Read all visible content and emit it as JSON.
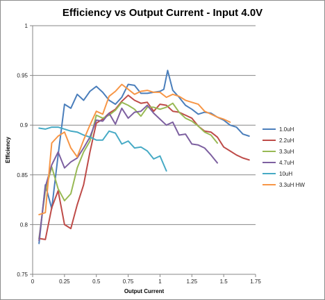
{
  "chart_data": {
    "type": "line",
    "title": "Efficiency vs Output Current - Input 4.0V",
    "xlabel": "Output Current",
    "ylabel": "Efficiency",
    "xlim": [
      0,
      1.75
    ],
    "ylim": [
      0.75,
      1
    ],
    "xticks": [
      "0",
      "0.25",
      "0.5",
      "0.75",
      "1",
      "1.25",
      "1.5",
      "1.75"
    ],
    "yticks": [
      "0.75",
      "0.8",
      "0.85",
      "0.9",
      "0.95",
      "1"
    ],
    "grid": "horizontal",
    "legend_position": "right",
    "series": [
      {
        "name": "1.0uH",
        "color": "#4a7ebb",
        "points": [
          [
            0.05,
            0.781
          ],
          [
            0.1,
            0.84
          ],
          [
            0.15,
            0.816
          ],
          [
            0.2,
            0.87
          ],
          [
            0.25,
            0.921
          ],
          [
            0.3,
            0.917
          ],
          [
            0.35,
            0.931
          ],
          [
            0.4,
            0.925
          ],
          [
            0.45,
            0.934
          ],
          [
            0.5,
            0.939
          ],
          [
            0.55,
            0.933
          ],
          [
            0.6,
            0.925
          ],
          [
            0.65,
            0.921
          ],
          [
            0.7,
            0.928
          ],
          [
            0.75,
            0.941
          ],
          [
            0.8,
            0.94
          ],
          [
            0.85,
            0.932
          ],
          [
            0.9,
            0.932
          ],
          [
            0.95,
            0.933
          ],
          [
            1.0,
            0.934
          ],
          [
            1.03,
            0.936
          ],
          [
            1.06,
            0.955
          ],
          [
            1.1,
            0.935
          ],
          [
            1.15,
            0.928
          ],
          [
            1.2,
            0.92
          ],
          [
            1.25,
            0.916
          ],
          [
            1.3,
            0.911
          ],
          [
            1.35,
            0.913
          ],
          [
            1.4,
            0.912
          ],
          [
            1.45,
            0.908
          ],
          [
            1.5,
            0.905
          ],
          [
            1.55,
            0.9
          ],
          [
            1.6,
            0.898
          ],
          [
            1.65,
            0.891
          ],
          [
            1.7,
            0.889
          ]
        ]
      },
      {
        "name": "2.2uH",
        "color": "#be4b48",
        "points": [
          [
            0.05,
            0.786
          ],
          [
            0.1,
            0.785
          ],
          [
            0.15,
            0.817
          ],
          [
            0.2,
            0.834
          ],
          [
            0.25,
            0.8
          ],
          [
            0.3,
            0.796
          ],
          [
            0.35,
            0.82
          ],
          [
            0.4,
            0.84
          ],
          [
            0.45,
            0.873
          ],
          [
            0.5,
            0.902
          ],
          [
            0.55,
            0.906
          ],
          [
            0.6,
            0.912
          ],
          [
            0.65,
            0.916
          ],
          [
            0.7,
            0.924
          ],
          [
            0.75,
            0.93
          ],
          [
            0.8,
            0.925
          ],
          [
            0.85,
            0.922
          ],
          [
            0.9,
            0.923
          ],
          [
            0.95,
            0.914
          ],
          [
            1.0,
            0.921
          ],
          [
            1.05,
            0.92
          ],
          [
            1.1,
            0.914
          ],
          [
            1.15,
            0.913
          ],
          [
            1.2,
            0.91
          ],
          [
            1.25,
            0.907
          ],
          [
            1.3,
            0.899
          ],
          [
            1.35,
            0.894
          ],
          [
            1.4,
            0.893
          ],
          [
            1.45,
            0.888
          ],
          [
            1.5,
            0.878
          ],
          [
            1.55,
            0.874
          ],
          [
            1.6,
            0.87
          ],
          [
            1.65,
            0.867
          ],
          [
            1.7,
            0.865
          ]
        ]
      },
      {
        "name": "3.3uH",
        "color": "#98b954",
        "points": [
          [
            0.05,
            0.786
          ],
          [
            0.1,
            0.834
          ],
          [
            0.15,
            0.858
          ],
          [
            0.2,
            0.836
          ],
          [
            0.25,
            0.824
          ],
          [
            0.3,
            0.831
          ],
          [
            0.35,
            0.857
          ],
          [
            0.4,
            0.873
          ],
          [
            0.45,
            0.884
          ],
          [
            0.5,
            0.91
          ],
          [
            0.55,
            0.907
          ],
          [
            0.6,
            0.91
          ],
          [
            0.65,
            0.915
          ],
          [
            0.7,
            0.923
          ],
          [
            0.75,
            0.92
          ],
          [
            0.8,
            0.916
          ],
          [
            0.85,
            0.909
          ],
          [
            0.9,
            0.918
          ],
          [
            0.95,
            0.918
          ],
          [
            1.0,
            0.916
          ],
          [
            1.05,
            0.918
          ],
          [
            1.1,
            0.922
          ],
          [
            1.15,
            0.913
          ],
          [
            1.2,
            0.907
          ],
          [
            1.25,
            0.904
          ],
          [
            1.3,
            0.899
          ],
          [
            1.35,
            0.893
          ],
          [
            1.4,
            0.89
          ],
          [
            1.45,
            0.882
          ]
        ]
      },
      {
        "name": "4.7uH",
        "color": "#7d60a0",
        "points": [
          [
            0.05,
            0.784
          ],
          [
            0.1,
            0.838
          ],
          [
            0.15,
            0.86
          ],
          [
            0.2,
            0.873
          ],
          [
            0.25,
            0.857
          ],
          [
            0.3,
            0.863
          ],
          [
            0.35,
            0.867
          ],
          [
            0.4,
            0.877
          ],
          [
            0.45,
            0.888
          ],
          [
            0.5,
            0.905
          ],
          [
            0.55,
            0.904
          ],
          [
            0.6,
            0.912
          ],
          [
            0.65,
            0.901
          ],
          [
            0.7,
            0.917
          ],
          [
            0.75,
            0.907
          ],
          [
            0.8,
            0.913
          ],
          [
            0.85,
            0.914
          ],
          [
            0.9,
            0.92
          ],
          [
            0.95,
            0.912
          ],
          [
            1.0,
            0.906
          ],
          [
            1.05,
            0.9
          ],
          [
            1.1,
            0.903
          ],
          [
            1.15,
            0.89
          ],
          [
            1.2,
            0.891
          ],
          [
            1.25,
            0.881
          ],
          [
            1.3,
            0.88
          ],
          [
            1.35,
            0.877
          ],
          [
            1.4,
            0.87
          ],
          [
            1.45,
            0.862
          ]
        ]
      },
      {
        "name": "10uH",
        "color": "#46aac5",
        "points": [
          [
            0.05,
            0.897
          ],
          [
            0.1,
            0.896
          ],
          [
            0.15,
            0.898
          ],
          [
            0.2,
            0.898
          ],
          [
            0.25,
            0.896
          ],
          [
            0.3,
            0.894
          ],
          [
            0.35,
            0.893
          ],
          [
            0.4,
            0.89
          ],
          [
            0.45,
            0.888
          ],
          [
            0.5,
            0.885
          ],
          [
            0.55,
            0.885
          ],
          [
            0.6,
            0.894
          ],
          [
            0.65,
            0.892
          ],
          [
            0.7,
            0.881
          ],
          [
            0.75,
            0.884
          ],
          [
            0.8,
            0.877
          ],
          [
            0.85,
            0.878
          ],
          [
            0.9,
            0.874
          ],
          [
            0.95,
            0.866
          ],
          [
            1.0,
            0.869
          ],
          [
            1.05,
            0.854
          ]
        ]
      },
      {
        "name": "3.3uH HW",
        "color": "#f79646",
        "points": [
          [
            0.05,
            0.81
          ],
          [
            0.1,
            0.812
          ],
          [
            0.15,
            0.882
          ],
          [
            0.2,
            0.889
          ],
          [
            0.25,
            0.893
          ],
          [
            0.3,
            0.877
          ],
          [
            0.35,
            0.868
          ],
          [
            0.4,
            0.885
          ],
          [
            0.45,
            0.9
          ],
          [
            0.5,
            0.914
          ],
          [
            0.55,
            0.911
          ],
          [
            0.6,
            0.929
          ],
          [
            0.65,
            0.934
          ],
          [
            0.7,
            0.941
          ],
          [
            0.75,
            0.936
          ],
          [
            0.8,
            0.931
          ],
          [
            0.85,
            0.934
          ],
          [
            0.9,
            0.935
          ],
          [
            0.95,
            0.933
          ],
          [
            1.0,
            0.933
          ],
          [
            1.05,
            0.928
          ],
          [
            1.1,
            0.931
          ],
          [
            1.15,
            0.929
          ],
          [
            1.2,
            0.925
          ],
          [
            1.25,
            0.923
          ],
          [
            1.3,
            0.921
          ],
          [
            1.35,
            0.914
          ],
          [
            1.4,
            0.911
          ],
          [
            1.45,
            0.908
          ],
          [
            1.5,
            0.906
          ],
          [
            1.55,
            0.903
          ]
        ]
      }
    ]
  }
}
